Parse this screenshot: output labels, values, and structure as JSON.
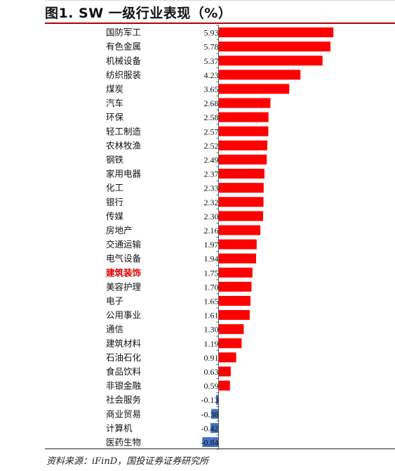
{
  "title": "图1. SW 一级行业表现（%）",
  "source": "资料来源：iFinD，国投证券证券研究所",
  "colors": {
    "positive": "#ff0000",
    "negative": "#4472c4",
    "highlight_label": "#e00000",
    "title_rule": "#b40000"
  },
  "chart_data": {
    "type": "bar",
    "orientation": "horizontal",
    "title": "图1. SW 一级行业表现（%）",
    "xlabel": "",
    "ylabel": "",
    "highlight": "建筑装饰",
    "categories": [
      "国防军工",
      "有色金属",
      "机械设备",
      "纺织服装",
      "煤炭",
      "汽车",
      "环保",
      "轻工制造",
      "农林牧渔",
      "钢铁",
      "家用电器",
      "化工",
      "银行",
      "传媒",
      "房地产",
      "交通运输",
      "电气设备",
      "建筑装饰",
      "美容护理",
      "电子",
      "公用事业",
      "通信",
      "建筑材料",
      "石油石化",
      "食品饮料",
      "非银金融",
      "社会服务",
      "商业贸易",
      "计算机",
      "医药生物"
    ],
    "values": [
      5.93,
      5.78,
      5.37,
      4.23,
      3.65,
      2.68,
      2.58,
      2.57,
      2.52,
      2.49,
      2.37,
      2.33,
      2.32,
      2.3,
      2.16,
      1.97,
      1.94,
      1.75,
      1.7,
      1.65,
      1.61,
      1.3,
      1.19,
      0.91,
      0.63,
      0.59,
      -0.13,
      -0.38,
      -0.42,
      -0.84
    ],
    "value_labels": [
      "5.93",
      "5.78",
      "5.37",
      "4.23",
      "3.65",
      "2.68",
      "2.58",
      "2.57",
      "2.52",
      "2.49",
      "2.37",
      "2.33",
      "2.32",
      "2.30",
      "2.16",
      "1.97",
      "1.94",
      "1.75",
      "1.70",
      "1.65",
      "1.61",
      "1.30",
      "1.19",
      "0.91",
      "0.63",
      "0.59",
      "-0.13",
      "-0.38",
      "-0.42",
      "-0.84"
    ],
    "xlim": [
      -1,
      6
    ],
    "grid": false,
    "legend": "none"
  }
}
